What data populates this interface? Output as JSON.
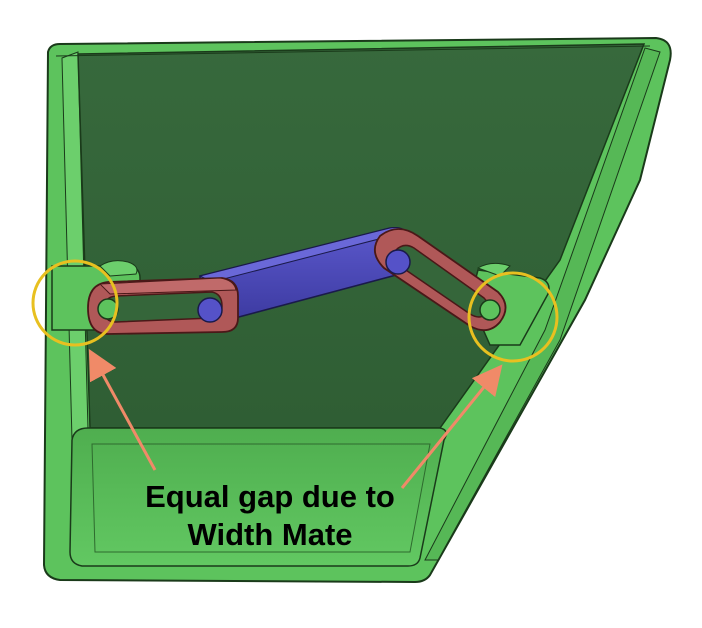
{
  "annotation": {
    "caption_line1": "Equal gap due to",
    "caption_line2": "Width Mate"
  },
  "scene": {
    "subject": "cad-assembly-green-tray-with-linkage",
    "colors": {
      "tray_outer": "#5dc35d",
      "tray_inner": "#35663a",
      "tray_floor": "#58bc58",
      "tray_edge": "#1a3a1a",
      "link_red": "#b05858",
      "link_red_dark": "#5a2020",
      "bar_blue": "#4a48b8",
      "pin_blue": "#5552c8",
      "highlight_circle": "#e8c020",
      "arrow": "#f08a68",
      "caption_text": "#000000"
    }
  }
}
